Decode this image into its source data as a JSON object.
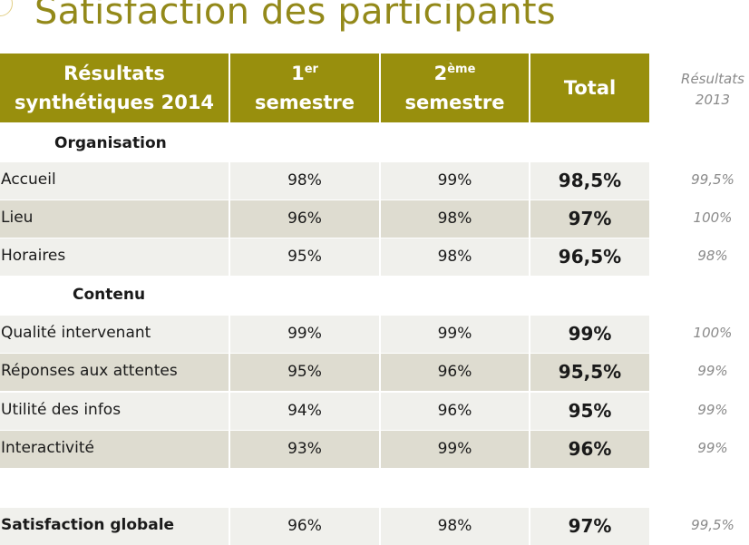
{
  "title": "Satisfaction des participants",
  "header": {
    "col0_line1": "Résultats",
    "col0_line2": "synthétiques 2014",
    "col1_num": "1",
    "col1_sup": "er",
    "col1_word": "semestre",
    "col2_num": "2",
    "col2_sup": "ème",
    "col2_word": "semestre",
    "col3": "Total",
    "prev_line1": "Résultats",
    "prev_line2": "2013"
  },
  "sections": {
    "organisation": "Organisation",
    "contenu": "Contenu"
  },
  "rows": [
    {
      "label": "Accueil",
      "s1": "98%",
      "s2": "99%",
      "total": "98,5%",
      "prev": "99,5%"
    },
    {
      "label": "Lieu",
      "s1": "96%",
      "s2": "98%",
      "total": "97%",
      "prev": "100%"
    },
    {
      "label": "Horaires",
      "s1": "95%",
      "s2": "98%",
      "total": "96,5%",
      "prev": "98%"
    },
    {
      "label": "Qualité intervenant",
      "s1": "99%",
      "s2": "99%",
      "total": "99%",
      "prev": "100%"
    },
    {
      "label": "Réponses aux attentes",
      "s1": "95%",
      "s2": "96%",
      "total": "95,5%",
      "prev": "99%"
    },
    {
      "label": "Utilité des infos",
      "s1": "94%",
      "s2": "96%",
      "total": "95%",
      "prev": "99%"
    },
    {
      "label": "Interactivité",
      "s1": "93%",
      "s2": "99%",
      "total": "96%",
      "prev": "99%"
    },
    {
      "label": "Satisfaction globale",
      "s1": "96%",
      "s2": "98%",
      "total": "97%",
      "prev": "99,5%"
    }
  ],
  "colors": {
    "title": "#93891a",
    "header_bg": "#988f0d",
    "row_light": "#f0f0ec",
    "row_dark": "#dedcd0",
    "muted": "#8a8a8a"
  }
}
